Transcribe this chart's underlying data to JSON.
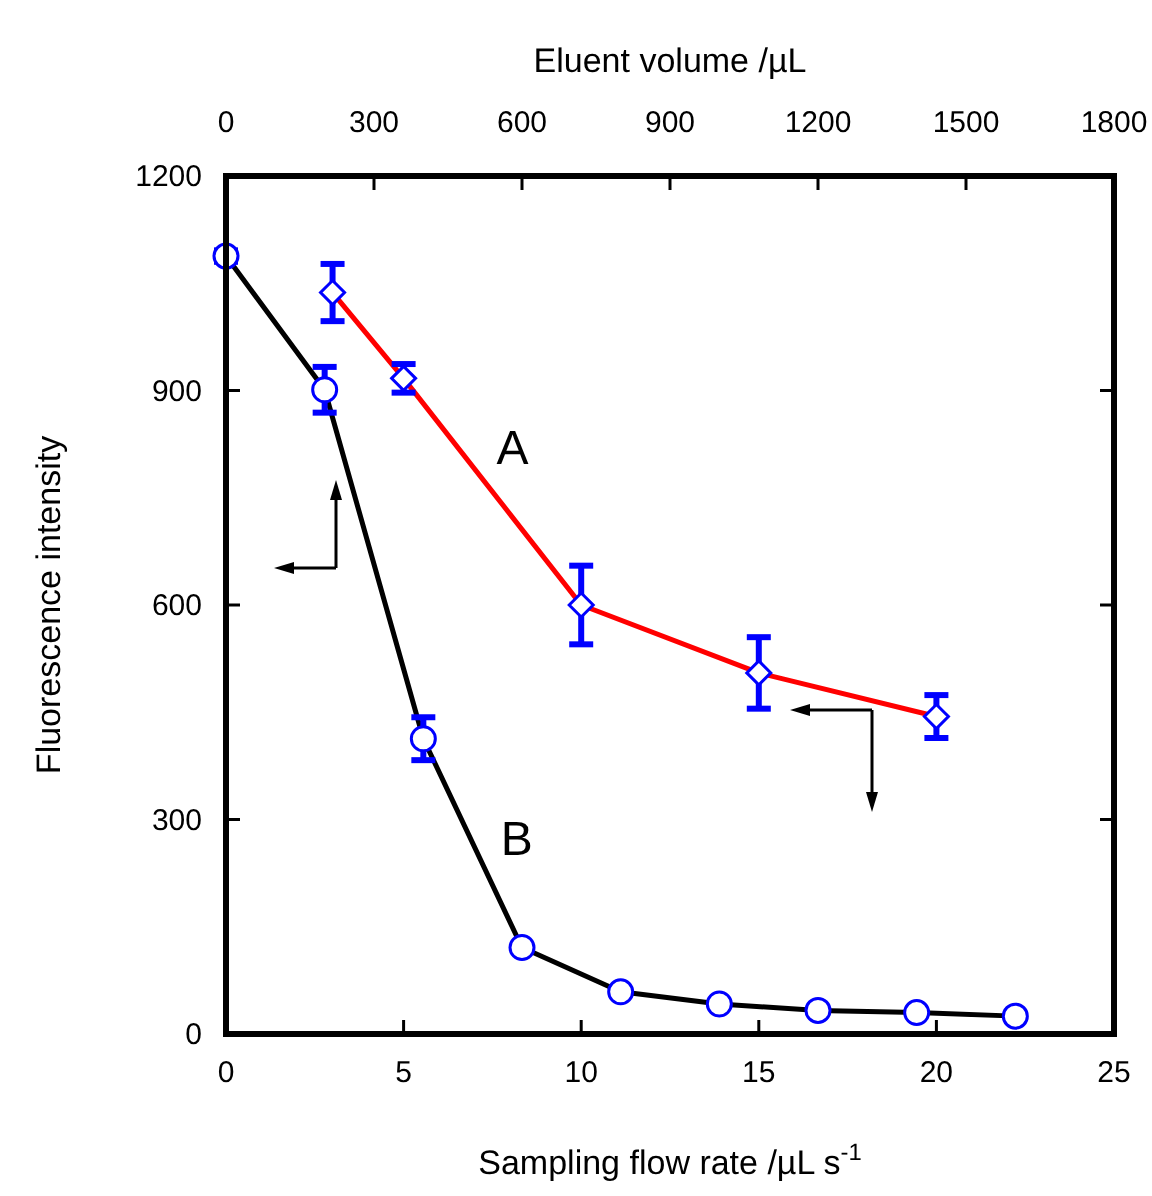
{
  "chart_data": {
    "type": "line",
    "xlabel": "Sampling flow rate /µL s$^{-1}$",
    "x2label": "Eluent volume /µL",
    "ylabel": "Fluorescence intensity",
    "xlim": [
      0,
      25
    ],
    "xticks": [
      0,
      5,
      10,
      15,
      20,
      25
    ],
    "x2lim": [
      0,
      1800
    ],
    "x2ticks": [
      0,
      300,
      600,
      900,
      1200,
      1500,
      1800
    ],
    "ylim": [
      0,
      1200
    ],
    "yticks": [
      0,
      300,
      600,
      900,
      1200
    ],
    "line_style": "solid",
    "series": [
      {
        "name": "A",
        "color": "#ff0000",
        "marker": "diamond",
        "x": [
          3,
          5,
          10,
          15,
          20
        ],
        "values": [
          1037,
          917,
          600,
          505,
          444
        ],
        "errors": [
          40,
          20,
          55,
          50,
          30
        ]
      },
      {
        "name": "B",
        "color": "#000000",
        "marker": "circle",
        "axis": "x2",
        "x": [
          0,
          200,
          400,
          600,
          800,
          1000,
          1200,
          1400,
          1600
        ],
        "values": [
          1088,
          901,
          413,
          121,
          59,
          42,
          33,
          30,
          25
        ],
        "errors": [
          8,
          32,
          30,
          null,
          null,
          null,
          null,
          null,
          null
        ]
      }
    ]
  }
}
